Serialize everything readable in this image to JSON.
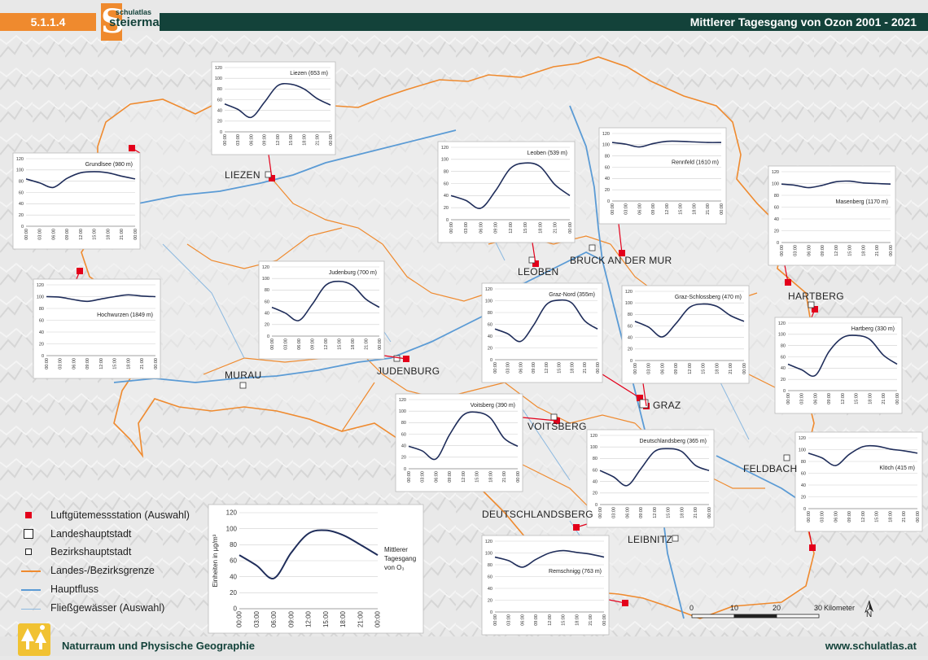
{
  "header": {
    "section_number": "5.1.1.4",
    "logo_small": "schulatlas",
    "logo_big": "steiermark",
    "logo_letter": "S",
    "title": "Mittlerer Tagesgang von Ozon 2001 - 2021"
  },
  "footer": {
    "left": "Naturraum und Physische Geographie",
    "right": "www.schulatlas.at"
  },
  "cities": [
    {
      "key": "liezen",
      "name": "LIEZEN"
    },
    {
      "key": "leoben",
      "name": "LEOBEN"
    },
    {
      "key": "bruck",
      "name": "BRUCK AN DER MUR"
    },
    {
      "key": "hartberg",
      "name": "HARTBERG"
    },
    {
      "key": "murau",
      "name": "MURAU"
    },
    {
      "key": "judenburg",
      "name": "JUDENBURG"
    },
    {
      "key": "graz",
      "name": "GRAZ"
    },
    {
      "key": "voitsberg",
      "name": "VOITSBERG"
    },
    {
      "key": "feldbach",
      "name": "FELDBACH"
    },
    {
      "key": "deutschlandsberg",
      "name": "DEUTSCHLANDSBERG"
    },
    {
      "key": "leibnitz",
      "name": "LEIBNITZ"
    }
  ],
  "legend": {
    "items": [
      {
        "symbol": "station",
        "label": "Luftgütemessstation (Auswahl)"
      },
      {
        "symbol": "capital",
        "label": "Landeshauptstadt"
      },
      {
        "symbol": "district",
        "label": "Bezirkshauptstadt"
      },
      {
        "symbol": "border",
        "label": "Landes-/Bezirksgrenze"
      },
      {
        "symbol": "river",
        "label": "Hauptfluss"
      },
      {
        "symbol": "stream",
        "label": "Fließgewässer (Auswahl)"
      }
    ],
    "chart_note": [
      "Mittlerer",
      "Tagesgang",
      "von O₃"
    ],
    "chart_ylabel": "Einheiten in µg/m³"
  },
  "scale": {
    "ticks": [
      "0",
      "10",
      "20",
      "30"
    ],
    "unit": "Kilometer"
  },
  "north_label": "N",
  "colors": {
    "header_green": "#13423a",
    "header_orange": "#ef8a2e",
    "border_orange": "#ef8a2e",
    "river_blue": "#5b9bd5",
    "station_red": "#e3001b",
    "curve_navy": "#1f2d5a"
  },
  "chart_data": [
    {
      "type": "line",
      "id": "liezen",
      "title": "Liezen (653 m)",
      "x": [
        "00:00",
        "03:00",
        "06:00",
        "09:00",
        "12:00",
        "15:00",
        "18:00",
        "21:00",
        "00:00"
      ],
      "values": [
        52,
        42,
        27,
        55,
        86,
        89,
        80,
        62,
        50
      ],
      "ylim": [
        0,
        120
      ],
      "yticks": [
        0,
        20,
        40,
        60,
        80,
        100,
        120
      ]
    },
    {
      "type": "line",
      "id": "grundlsee",
      "title": "Grundlsee (980 m)",
      "x": [
        "00:00",
        "03:00",
        "06:00",
        "09:00",
        "12:00",
        "15:00",
        "18:00",
        "21:00",
        "00:00"
      ],
      "values": [
        84,
        77,
        69,
        85,
        95,
        97,
        95,
        89,
        84
      ],
      "ylim": [
        0,
        120
      ],
      "yticks": [
        0,
        20,
        40,
        60,
        80,
        100,
        120
      ]
    },
    {
      "type": "line",
      "id": "leoben",
      "title": "Leoben (539 m)",
      "x": [
        "00:00",
        "03:00",
        "06:00",
        "09:00",
        "12:00",
        "15:00",
        "18:00",
        "21:00",
        "00:00"
      ],
      "values": [
        40,
        32,
        19,
        48,
        85,
        94,
        88,
        58,
        40
      ],
      "ylim": [
        0,
        120
      ],
      "yticks": [
        0,
        20,
        40,
        60,
        80,
        100,
        120
      ]
    },
    {
      "type": "line",
      "id": "rennfeld",
      "title": "Rennfeld (1610 m)",
      "x": [
        "00:00",
        "03:00",
        "06:00",
        "09:00",
        "12:00",
        "15:00",
        "18:00",
        "21:00",
        "00:00"
      ],
      "values": [
        104,
        101,
        96,
        102,
        106,
        106,
        105,
        104,
        104
      ],
      "ylim": [
        0,
        120
      ],
      "yticks": [
        0,
        20,
        40,
        60,
        80,
        100,
        120
      ]
    },
    {
      "type": "line",
      "id": "masenberg",
      "title": "Masenberg (1170 m)",
      "x": [
        "00:00",
        "03:00",
        "06:00",
        "09:00",
        "12:00",
        "15:00",
        "18:00",
        "21:00",
        "00:00"
      ],
      "values": [
        99,
        97,
        93,
        97,
        103,
        104,
        101,
        100,
        99
      ],
      "ylim": [
        0,
        120
      ],
      "yticks": [
        0,
        20,
        40,
        60,
        80,
        100,
        120
      ]
    },
    {
      "type": "line",
      "id": "hochwurzen",
      "title": "Hochwurzen (1849 m)",
      "x": [
        "00:00",
        "03:00",
        "06:00",
        "09:00",
        "12:00",
        "15:00",
        "18:00",
        "21:00",
        "00:00"
      ],
      "values": [
        100,
        99,
        95,
        92,
        96,
        100,
        103,
        101,
        100
      ],
      "ylim": [
        0,
        120
      ],
      "yticks": [
        0,
        20,
        40,
        60,
        80,
        100,
        120
      ]
    },
    {
      "type": "line",
      "id": "judenburg",
      "title": "Judenburg (700 m)",
      "x": [
        "00:00",
        "03:00",
        "06:00",
        "09:00",
        "12:00",
        "15:00",
        "18:00",
        "21:00",
        "00:00"
      ],
      "values": [
        50,
        40,
        27,
        55,
        88,
        95,
        88,
        64,
        50
      ],
      "ylim": [
        0,
        120
      ],
      "yticks": [
        0,
        20,
        40,
        60,
        80,
        100,
        120
      ]
    },
    {
      "type": "line",
      "id": "graz_nord",
      "title": "Graz-Nord (355m)",
      "x": [
        "00:00",
        "03:00",
        "06:00",
        "09:00",
        "12:00",
        "15:00",
        "18:00",
        "21:00",
        "00:00"
      ],
      "values": [
        52,
        44,
        31,
        58,
        93,
        101,
        96,
        66,
        52
      ],
      "ylim": [
        0,
        120
      ],
      "yticks": [
        0,
        20,
        40,
        60,
        80,
        100,
        120
      ]
    },
    {
      "type": "line",
      "id": "graz_schlossberg",
      "title": "Graz-Schlossberg (470 m)",
      "x": [
        "00:00",
        "03:00",
        "06:00",
        "09:00",
        "12:00",
        "15:00",
        "18:00",
        "21:00",
        "00:00"
      ],
      "values": [
        68,
        58,
        41,
        64,
        92,
        98,
        94,
        78,
        68
      ],
      "ylim": [
        0,
        120
      ],
      "yticks": [
        0,
        20,
        40,
        60,
        80,
        100,
        120
      ]
    },
    {
      "type": "line",
      "id": "hartberg",
      "title": "Hartberg (330 m)",
      "x": [
        "00:00",
        "03:00",
        "06:00",
        "09:00",
        "12:00",
        "15:00",
        "18:00",
        "21:00",
        "00:00"
      ],
      "values": [
        47,
        37,
        27,
        69,
        94,
        98,
        91,
        63,
        47
      ],
      "ylim": [
        0,
        120
      ],
      "yticks": [
        0,
        20,
        40,
        60,
        80,
        100,
        120
      ]
    },
    {
      "type": "line",
      "id": "voitsberg",
      "title": "Voitsberg (390 m)",
      "x": [
        "00:00",
        "03:00",
        "06:00",
        "09:00",
        "12:00",
        "15:00",
        "18:00",
        "21:00",
        "00:00"
      ],
      "values": [
        39,
        31,
        17,
        59,
        93,
        98,
        88,
        53,
        39
      ],
      "ylim": [
        0,
        120
      ],
      "yticks": [
        0,
        20,
        40,
        60,
        80,
        100,
        120
      ]
    },
    {
      "type": "line",
      "id": "deutschlandsberg",
      "title": "Deutschlandsberg (365 m)",
      "x": [
        "00:00",
        "03:00",
        "06:00",
        "09:00",
        "12:00",
        "15:00",
        "18:00",
        "21:00",
        "00:00"
      ],
      "values": [
        59,
        48,
        33,
        62,
        92,
        97,
        92,
        68,
        59
      ],
      "ylim": [
        0,
        120
      ],
      "yticks": [
        0,
        20,
        40,
        60,
        80,
        100,
        120
      ]
    },
    {
      "type": "line",
      "id": "kloech",
      "title": "Klöch (415 m)",
      "x": [
        "00:00",
        "03:00",
        "06:00",
        "09:00",
        "12:00",
        "15:00",
        "18:00",
        "21:00",
        "00:00"
      ],
      "values": [
        94,
        86,
        73,
        92,
        105,
        106,
        101,
        98,
        94
      ],
      "ylim": [
        0,
        120
      ],
      "yticks": [
        0,
        20,
        40,
        60,
        80,
        100,
        120
      ]
    },
    {
      "type": "line",
      "id": "remschnigg",
      "title": "Remschnigg (763 m)",
      "x": [
        "00:00",
        "03:00",
        "06:00",
        "09:00",
        "12:00",
        "15:00",
        "18:00",
        "21:00",
        "00:00"
      ],
      "values": [
        93,
        87,
        76,
        89,
        100,
        104,
        101,
        98,
        93
      ],
      "ylim": [
        0,
        120
      ],
      "yticks": [
        0,
        20,
        40,
        60,
        80,
        100,
        120
      ]
    },
    {
      "type": "line",
      "id": "legend_chart",
      "title": "",
      "x": [
        "00:00",
        "03:00",
        "06:00",
        "09:00",
        "12:00",
        "15:00",
        "18:00",
        "21:00",
        "00:00"
      ],
      "values": [
        67,
        54,
        38,
        70,
        94,
        98,
        92,
        80,
        67
      ],
      "ylim": [
        0,
        120
      ],
      "yticks": [
        0,
        20,
        40,
        60,
        80,
        100,
        120
      ]
    }
  ]
}
